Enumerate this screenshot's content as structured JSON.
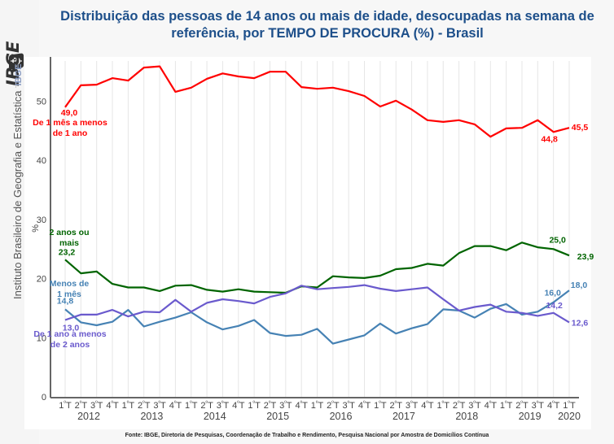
{
  "sidebar": {
    "logo_text": "IBGE",
    "caption": "Instituto Brasileiro de Geografia e Estatística",
    "caption_badge": "IBGE",
    "logo_icon": "ibge-globe-icon"
  },
  "footer": {
    "source": "Fonte: IBGE, Diretoria de Pesquisas, Coordenação de Trabalho e Rendimento, Pesquisa Nacional por Amostra de Domicílios Contínua"
  },
  "chart_data": {
    "type": "line",
    "title": "Distribuição das pessoas de 14 anos ou mais de idade, desocupadas na semana de referência, por TEMPO DE PROCURA (%) - Brasil",
    "title_lines": [
      "Distribuição das pessoas de 14 anos ou mais de idade, desocupadas na semana de",
      "referência, por TEMPO DE PROCURA (%) - Brasil"
    ],
    "xlabel": "",
    "ylabel": "%",
    "ylim": [
      0,
      57
    ],
    "yticks": [
      0,
      10,
      20,
      30,
      40,
      50
    ],
    "grid": "vertical",
    "x_quarter_labels": [
      "1ºT",
      "2ºT",
      "3ºT",
      "4ºT",
      "1ºT",
      "2ºT",
      "3ºT",
      "4ºT",
      "1ºT",
      "2ºT",
      "3ºT",
      "4ºT",
      "1ºT",
      "2ºT",
      "3ºT",
      "4ºT",
      "1ºT",
      "2ºT",
      "3ºT",
      "4ºT",
      "1ºT",
      "2ºT",
      "3ºT",
      "4ºT",
      "1ºT",
      "2ºT",
      "3ºT",
      "4ºT",
      "1ºT",
      "2ºT",
      "3ºT",
      "4ºT",
      "1ºT"
    ],
    "x_year_labels": [
      {
        "year": "2012",
        "center_index": 1.5
      },
      {
        "year": "2013",
        "center_index": 5.5
      },
      {
        "year": "2014",
        "center_index": 9.5
      },
      {
        "year": "2015",
        "center_index": 13.5
      },
      {
        "year": "2016",
        "center_index": 17.5
      },
      {
        "year": "2017",
        "center_index": 21.5
      },
      {
        "year": "2018",
        "center_index": 25.5
      },
      {
        "year": "2019",
        "center_index": 29.5
      },
      {
        "year": "2020",
        "center_index": 32
      }
    ],
    "series": [
      {
        "name": "De 1 mês a menos de 1 ano",
        "label_lines": [
          "De 1 mês a menos",
          "de 1 ano"
        ],
        "color": "#ff0000",
        "values": [
          49.0,
          52.7,
          52.8,
          53.9,
          53.5,
          55.7,
          55.9,
          51.6,
          52.3,
          53.8,
          54.7,
          54.2,
          53.9,
          55.0,
          55.0,
          52.4,
          52.1,
          52.3,
          51.7,
          50.9,
          49.1,
          50.1,
          48.6,
          46.8,
          46.5,
          46.8,
          46.1,
          44.0,
          45.4,
          45.5,
          46.8,
          44.8,
          45.5
        ],
        "data_labels": [
          {
            "index": 0,
            "text": "49,0"
          },
          {
            "index": 31,
            "text": "44,8"
          },
          {
            "index": 32,
            "text": "45,5"
          }
        ]
      },
      {
        "name": "2 anos ou mais",
        "label_lines": [
          "2 anos ou",
          "mais"
        ],
        "color": "#006400",
        "values": [
          23.2,
          20.9,
          21.2,
          19.1,
          18.5,
          18.5,
          17.9,
          18.8,
          18.9,
          18.1,
          17.8,
          18.2,
          17.8,
          17.7,
          17.6,
          18.7,
          18.5,
          20.4,
          20.2,
          20.1,
          20.5,
          21.6,
          21.8,
          22.5,
          22.2,
          24.3,
          25.5,
          25.5,
          24.8,
          26.1,
          25.3,
          25.0,
          23.9
        ],
        "data_labels": [
          {
            "index": 0,
            "text": "23,2"
          },
          {
            "index": 31,
            "text": "25,0"
          },
          {
            "index": 32,
            "text": "23,9"
          }
        ]
      },
      {
        "name": "Menos de 1 mês",
        "label_lines": [
          "Menos de",
          "1 mês"
        ],
        "color": "#4682b4",
        "values": [
          14.8,
          12.6,
          12.1,
          12.7,
          14.7,
          11.9,
          12.7,
          13.4,
          14.3,
          12.6,
          11.4,
          12.0,
          13.0,
          10.8,
          10.3,
          10.5,
          11.5,
          9.0,
          9.7,
          10.4,
          12.4,
          10.7,
          11.6,
          12.3,
          14.8,
          14.6,
          13.4,
          14.9,
          15.7,
          13.9,
          14.4,
          16.0,
          18.0
        ],
        "data_labels": [
          {
            "index": 0,
            "text": "14,8"
          },
          {
            "index": 31,
            "text": "16,0"
          },
          {
            "index": 32,
            "text": "18,0"
          }
        ]
      },
      {
        "name": "De 1 ano a menos de 2 anos",
        "label_lines": [
          "De 1 ano a menos",
          "de 2 anos"
        ],
        "color": "#6a5acd",
        "values": [
          13.0,
          13.9,
          13.9,
          14.7,
          13.6,
          14.4,
          14.3,
          16.4,
          14.4,
          15.9,
          16.5,
          16.2,
          15.8,
          16.9,
          17.5,
          18.8,
          18.2,
          18.4,
          18.6,
          18.9,
          18.3,
          17.9,
          18.2,
          18.5,
          16.5,
          14.6,
          15.2,
          15.6,
          14.4,
          14.2,
          13.7,
          14.2,
          12.6
        ],
        "data_labels": [
          {
            "index": 0,
            "text": "13,0"
          },
          {
            "index": 31,
            "text": "14,2"
          },
          {
            "index": 32,
            "text": "12,6"
          }
        ]
      }
    ]
  }
}
